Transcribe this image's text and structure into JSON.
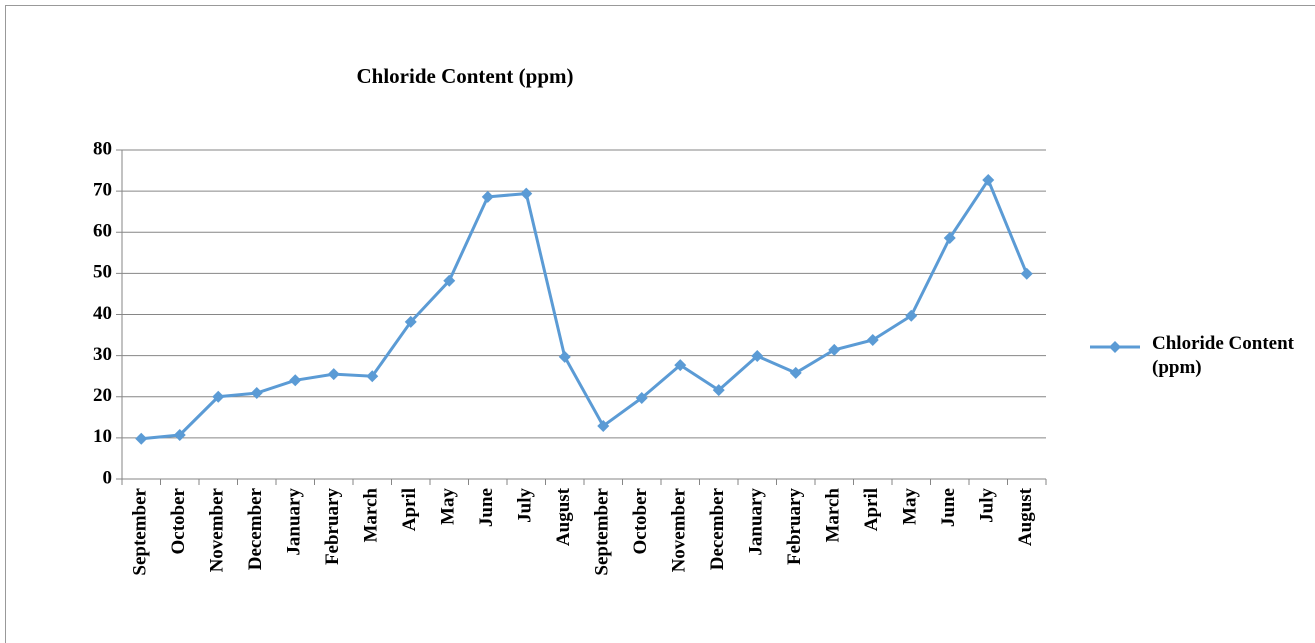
{
  "chart_data": {
    "type": "line",
    "title": "Chloride Content (ppm)",
    "categories": [
      "September",
      "October",
      "November",
      "December",
      "January",
      "February",
      "March",
      "April",
      "May",
      "June",
      "July",
      "August",
      "September",
      "October",
      "November",
      "December",
      "January",
      "February",
      "March",
      "April",
      "May",
      "June",
      "July",
      "August"
    ],
    "series": [
      {
        "name": "Chloride Content (ppm)",
        "color": "#5b9bd5",
        "values": [
          9.8,
          10.7,
          20,
          20.9,
          24,
          25.5,
          25,
          38.2,
          48.2,
          68.6,
          69.4,
          29.7,
          12.9,
          19.7,
          27.7,
          21.6,
          29.9,
          25.8,
          31.4,
          33.8,
          39.7,
          58.6,
          72.7,
          49.9
        ]
      }
    ],
    "ylim": [
      0,
      80
    ],
    "yticks": [
      0,
      10,
      20,
      30,
      40,
      50,
      60,
      70,
      80
    ],
    "grid": true,
    "legend": "right"
  }
}
